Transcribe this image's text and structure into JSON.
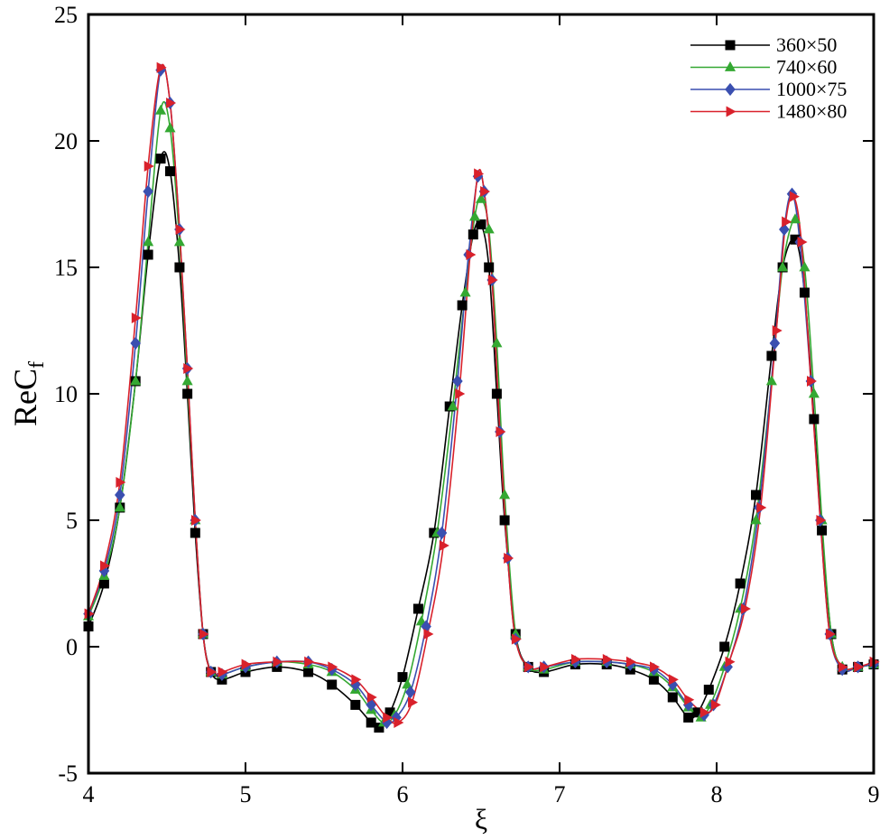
{
  "chart_data": {
    "type": "line",
    "title": "",
    "xlabel": "ξ",
    "ylabel_main": "ReC",
    "ylabel_sub": "f",
    "xlim": [
      4,
      9
    ],
    "ylim": [
      -5,
      25
    ],
    "xticks": [
      4,
      5,
      6,
      7,
      8,
      9
    ],
    "yticks": [
      -5,
      0,
      5,
      10,
      15,
      20,
      25
    ],
    "x_tick_labels": [
      "4",
      "5",
      "6",
      "7",
      "8",
      "9"
    ],
    "y_tick_labels": [
      "-5",
      "0",
      "5",
      "10",
      "15",
      "20",
      "25"
    ],
    "grid": false,
    "legend_position": "top-right",
    "series": [
      {
        "name": "360×50",
        "color": "#000000",
        "marker": "square",
        "points": [
          [
            4.0,
            0.8
          ],
          [
            4.1,
            2.5
          ],
          [
            4.2,
            5.5
          ],
          [
            4.3,
            10.5
          ],
          [
            4.38,
            15.5
          ],
          [
            4.46,
            19.3
          ],
          [
            4.52,
            18.8
          ],
          [
            4.58,
            15.0
          ],
          [
            4.63,
            10.0
          ],
          [
            4.68,
            4.5
          ],
          [
            4.73,
            0.5
          ],
          [
            4.78,
            -1.0
          ],
          [
            4.85,
            -1.3
          ],
          [
            5.0,
            -1.0
          ],
          [
            5.2,
            -0.8
          ],
          [
            5.4,
            -1.0
          ],
          [
            5.55,
            -1.5
          ],
          [
            5.7,
            -2.3
          ],
          [
            5.8,
            -3.0
          ],
          [
            5.85,
            -3.2
          ],
          [
            5.92,
            -2.6
          ],
          [
            6.0,
            -1.2
          ],
          [
            6.1,
            1.5
          ],
          [
            6.2,
            4.5
          ],
          [
            6.3,
            9.5
          ],
          [
            6.38,
            13.5
          ],
          [
            6.45,
            16.3
          ],
          [
            6.5,
            16.7
          ],
          [
            6.55,
            15.0
          ],
          [
            6.6,
            10.0
          ],
          [
            6.65,
            5.0
          ],
          [
            6.72,
            0.5
          ],
          [
            6.8,
            -0.8
          ],
          [
            6.9,
            -1.0
          ],
          [
            7.1,
            -0.7
          ],
          [
            7.3,
            -0.7
          ],
          [
            7.45,
            -0.9
          ],
          [
            7.6,
            -1.3
          ],
          [
            7.72,
            -2.0
          ],
          [
            7.82,
            -2.8
          ],
          [
            7.88,
            -2.6
          ],
          [
            7.95,
            -1.7
          ],
          [
            8.05,
            0.0
          ],
          [
            8.15,
            2.5
          ],
          [
            8.25,
            6.0
          ],
          [
            8.35,
            11.5
          ],
          [
            8.42,
            15.0
          ],
          [
            8.5,
            16.1
          ],
          [
            8.56,
            14.0
          ],
          [
            8.62,
            9.0
          ],
          [
            8.67,
            4.6
          ],
          [
            8.73,
            0.5
          ],
          [
            8.8,
            -0.9
          ],
          [
            8.9,
            -0.8
          ],
          [
            9.0,
            -0.7
          ]
        ]
      },
      {
        "name": "740×60",
        "color": "#34a832",
        "marker": "triangle",
        "points": [
          [
            4.0,
            1.2
          ],
          [
            4.1,
            2.8
          ],
          [
            4.2,
            5.5
          ],
          [
            4.3,
            10.5
          ],
          [
            4.38,
            16.0
          ],
          [
            4.46,
            21.2
          ],
          [
            4.52,
            20.5
          ],
          [
            4.58,
            16.0
          ],
          [
            4.63,
            10.5
          ],
          [
            4.68,
            5.0
          ],
          [
            4.73,
            0.5
          ],
          [
            4.78,
            -1.0
          ],
          [
            4.85,
            -1.1
          ],
          [
            5.0,
            -0.8
          ],
          [
            5.2,
            -0.6
          ],
          [
            5.4,
            -0.7
          ],
          [
            5.55,
            -1.0
          ],
          [
            5.7,
            -1.7
          ],
          [
            5.8,
            -2.5
          ],
          [
            5.88,
            -3.0
          ],
          [
            5.95,
            -2.7
          ],
          [
            6.03,
            -1.5
          ],
          [
            6.12,
            1.0
          ],
          [
            6.22,
            4.5
          ],
          [
            6.32,
            9.5
          ],
          [
            6.4,
            14.0
          ],
          [
            6.46,
            17.0
          ],
          [
            6.5,
            17.7
          ],
          [
            6.55,
            16.5
          ],
          [
            6.6,
            12.0
          ],
          [
            6.65,
            6.0
          ],
          [
            6.72,
            0.5
          ],
          [
            6.8,
            -0.8
          ],
          [
            6.9,
            -0.9
          ],
          [
            7.1,
            -0.6
          ],
          [
            7.3,
            -0.6
          ],
          [
            7.45,
            -0.7
          ],
          [
            7.6,
            -1.0
          ],
          [
            7.72,
            -1.6
          ],
          [
            7.82,
            -2.4
          ],
          [
            7.9,
            -2.8
          ],
          [
            7.96,
            -2.3
          ],
          [
            8.05,
            -0.8
          ],
          [
            8.15,
            1.5
          ],
          [
            8.25,
            5.0
          ],
          [
            8.35,
            10.5
          ],
          [
            8.42,
            15.0
          ],
          [
            8.5,
            16.9
          ],
          [
            8.56,
            15.0
          ],
          [
            8.62,
            10.0
          ],
          [
            8.67,
            5.0
          ],
          [
            8.73,
            0.5
          ],
          [
            8.8,
            -0.8
          ],
          [
            8.9,
            -0.8
          ],
          [
            9.0,
            -0.7
          ]
        ]
      },
      {
        "name": "1000×75",
        "color": "#3a4fb0",
        "marker": "diamond",
        "points": [
          [
            4.0,
            1.3
          ],
          [
            4.1,
            3.0
          ],
          [
            4.2,
            6.0
          ],
          [
            4.3,
            12.0
          ],
          [
            4.38,
            18.0
          ],
          [
            4.46,
            22.8
          ],
          [
            4.52,
            21.5
          ],
          [
            4.58,
            16.5
          ],
          [
            4.63,
            11.0
          ],
          [
            4.68,
            5.0
          ],
          [
            4.73,
            0.5
          ],
          [
            4.78,
            -1.0
          ],
          [
            4.85,
            -1.1
          ],
          [
            5.0,
            -0.8
          ],
          [
            5.2,
            -0.6
          ],
          [
            5.4,
            -0.6
          ],
          [
            5.55,
            -0.9
          ],
          [
            5.7,
            -1.5
          ],
          [
            5.8,
            -2.3
          ],
          [
            5.9,
            -3.0
          ],
          [
            5.96,
            -2.8
          ],
          [
            6.05,
            -1.8
          ],
          [
            6.15,
            0.8
          ],
          [
            6.25,
            4.5
          ],
          [
            6.35,
            10.5
          ],
          [
            6.42,
            15.5
          ],
          [
            6.48,
            18.6
          ],
          [
            6.52,
            18.0
          ],
          [
            6.57,
            14.5
          ],
          [
            6.62,
            8.5
          ],
          [
            6.67,
            3.5
          ],
          [
            6.72,
            0.3
          ],
          [
            6.8,
            -0.8
          ],
          [
            6.9,
            -0.8
          ],
          [
            7.1,
            -0.6
          ],
          [
            7.3,
            -0.6
          ],
          [
            7.45,
            -0.7
          ],
          [
            7.6,
            -0.9
          ],
          [
            7.72,
            -1.5
          ],
          [
            7.82,
            -2.3
          ],
          [
            7.92,
            -2.7
          ],
          [
            7.98,
            -2.3
          ],
          [
            8.07,
            -0.8
          ],
          [
            8.17,
            1.5
          ],
          [
            8.27,
            5.5
          ],
          [
            8.37,
            12.0
          ],
          [
            8.43,
            16.5
          ],
          [
            8.48,
            17.9
          ],
          [
            8.53,
            16.0
          ],
          [
            8.6,
            10.5
          ],
          [
            8.66,
            5.0
          ],
          [
            8.72,
            0.5
          ],
          [
            8.8,
            -0.9
          ],
          [
            8.9,
            -0.8
          ],
          [
            9.0,
            -0.7
          ]
        ]
      },
      {
        "name": "1480×80",
        "color": "#d9212b",
        "marker": "triangle-right",
        "points": [
          [
            4.0,
            1.3
          ],
          [
            4.1,
            3.2
          ],
          [
            4.2,
            6.5
          ],
          [
            4.3,
            13.0
          ],
          [
            4.38,
            19.0
          ],
          [
            4.46,
            22.9
          ],
          [
            4.52,
            21.5
          ],
          [
            4.58,
            16.5
          ],
          [
            4.63,
            11.0
          ],
          [
            4.68,
            5.0
          ],
          [
            4.73,
            0.5
          ],
          [
            4.78,
            -1.0
          ],
          [
            4.85,
            -1.0
          ],
          [
            5.0,
            -0.7
          ],
          [
            5.2,
            -0.6
          ],
          [
            5.4,
            -0.6
          ],
          [
            5.55,
            -0.8
          ],
          [
            5.7,
            -1.3
          ],
          [
            5.8,
            -2.0
          ],
          [
            5.9,
            -2.8
          ],
          [
            5.97,
            -3.0
          ],
          [
            6.06,
            -2.2
          ],
          [
            6.16,
            0.5
          ],
          [
            6.26,
            4.0
          ],
          [
            6.36,
            10.0
          ],
          [
            6.43,
            15.5
          ],
          [
            6.48,
            18.7
          ],
          [
            6.52,
            18.0
          ],
          [
            6.57,
            14.5
          ],
          [
            6.62,
            8.5
          ],
          [
            6.67,
            3.5
          ],
          [
            6.72,
            0.3
          ],
          [
            6.8,
            -0.8
          ],
          [
            6.9,
            -0.8
          ],
          [
            7.1,
            -0.5
          ],
          [
            7.3,
            -0.5
          ],
          [
            7.45,
            -0.6
          ],
          [
            7.6,
            -0.8
          ],
          [
            7.72,
            -1.3
          ],
          [
            7.82,
            -2.1
          ],
          [
            7.92,
            -2.6
          ],
          [
            7.99,
            -2.3
          ],
          [
            8.08,
            -0.6
          ],
          [
            8.18,
            1.5
          ],
          [
            8.28,
            5.5
          ],
          [
            8.38,
            12.5
          ],
          [
            8.44,
            16.8
          ],
          [
            8.49,
            17.8
          ],
          [
            8.54,
            16.0
          ],
          [
            8.6,
            10.5
          ],
          [
            8.66,
            5.0
          ],
          [
            8.72,
            0.5
          ],
          [
            8.8,
            -0.8
          ],
          [
            8.9,
            -0.8
          ],
          [
            9.0,
            -0.6
          ]
        ]
      }
    ]
  }
}
